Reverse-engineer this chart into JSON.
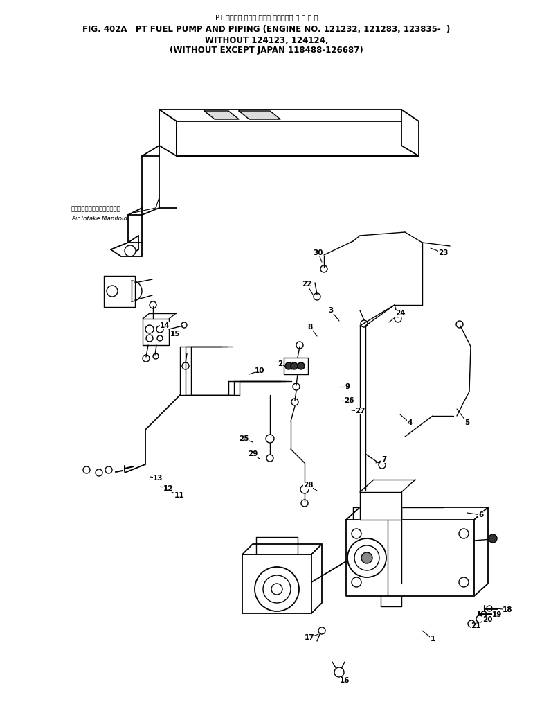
{
  "title_japanese": "PT フュエル ポンプ および パイピング 適 用 号 機",
  "title_line1": "FIG. 402A   PT FUEL PUMP AND PIPING (ENGINE NO. 121232, 121283, 123835-  )",
  "title_line2": "WITHOUT 124123, 124124,",
  "title_line3": "(WITHOUT EXCEPT JAPAN 118488-126687)",
  "label_japanese": "エアーインテークマニホールド",
  "label_english": "Air Intake Manifold",
  "bg_color": "#ffffff",
  "line_color": "#000000"
}
